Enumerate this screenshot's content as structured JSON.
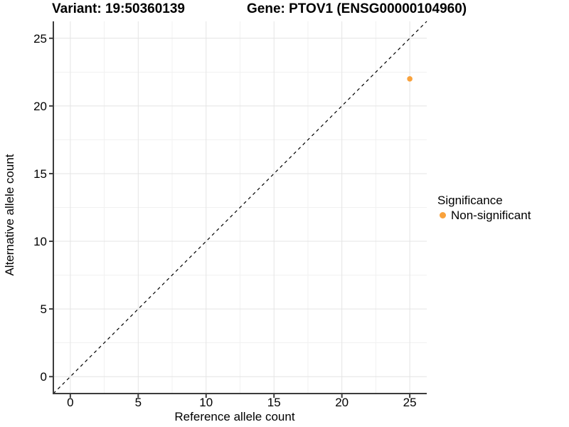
{
  "title": {
    "variant": "Variant: 19:50360139",
    "gene": "Gene: PTOV1 (ENSG00000104960)"
  },
  "axis": {
    "x_label": "Reference allele count",
    "y_label": "Alternative allele count"
  },
  "legend": {
    "title": "Significance",
    "items": [
      {
        "label": "Non-significant",
        "color": "#F9A23C"
      }
    ]
  },
  "chart_data": {
    "type": "scatter",
    "title_left": "Variant: 19:50360139",
    "title_right": "Gene: PTOV1 (ENSG00000104960)",
    "xlabel": "Reference allele count",
    "ylabel": "Alternative allele count",
    "xlim": [
      -1.25,
      26.25
    ],
    "ylim": [
      -1.25,
      26.25
    ],
    "x_ticks": [
      0,
      5,
      10,
      15,
      20,
      25
    ],
    "y_ticks": [
      0,
      5,
      10,
      15,
      20,
      25
    ],
    "minor_step": 2.5,
    "grid": "major+minor",
    "legend_title": "Significance",
    "legend_position": "right",
    "reference_line": {
      "type": "identity",
      "slope": 1,
      "intercept": 0,
      "style": "dashed",
      "color": "#000000"
    },
    "series": [
      {
        "name": "Non-significant",
        "color": "#F9A23C",
        "marker": "circle",
        "points": [
          {
            "x": 25,
            "y": 22
          }
        ]
      }
    ],
    "colors": {
      "grid_major": "#E4E4E4",
      "grid_minor": "#F1F1F1",
      "axis": "#3C3C3C",
      "tick_label": "#000000"
    }
  }
}
